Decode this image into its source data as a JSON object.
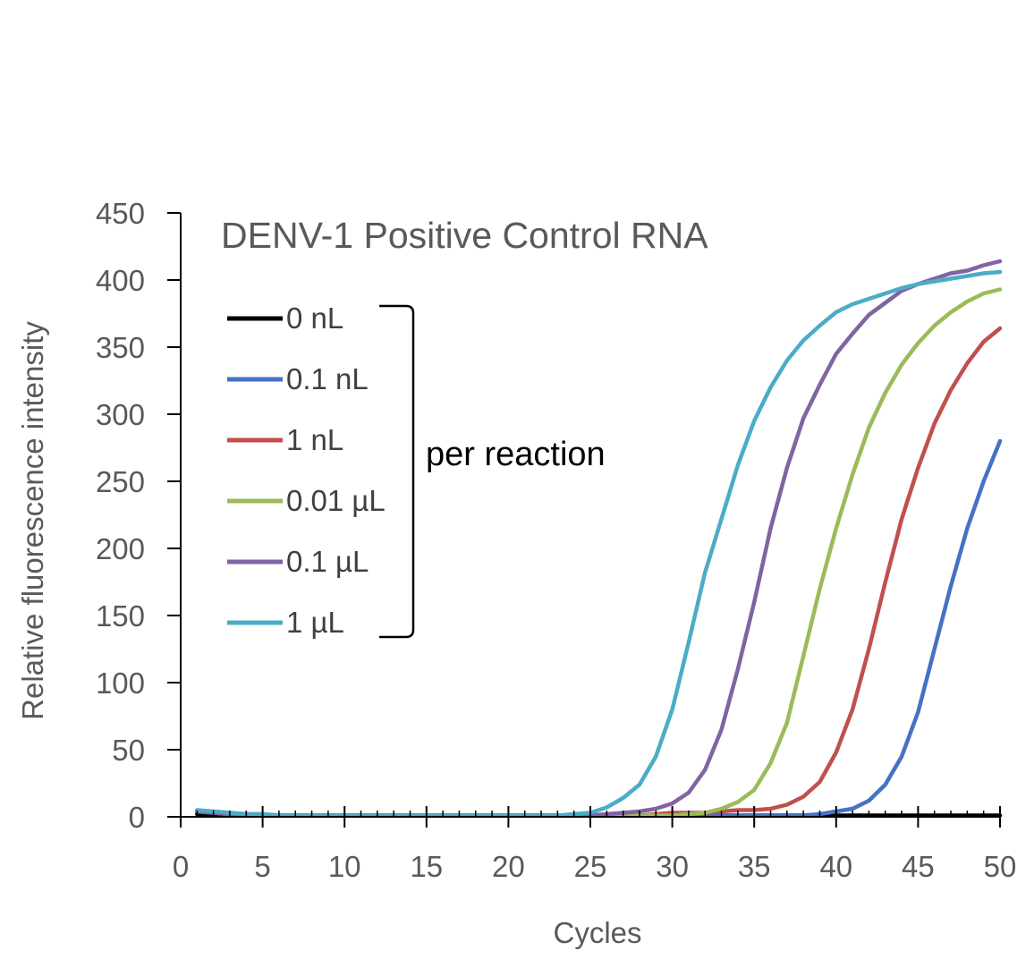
{
  "chart_data": {
    "type": "line",
    "title": "DENV-1 Positive Control RNA",
    "xlabel": "Cycles",
    "ylabel": "Relative fluorescence intensity",
    "xlim": [
      0,
      50
    ],
    "ylim": [
      0,
      450
    ],
    "x_ticks": [
      0,
      5,
      10,
      15,
      20,
      25,
      30,
      35,
      40,
      45,
      50
    ],
    "y_ticks": [
      0,
      50,
      100,
      150,
      200,
      250,
      300,
      350,
      400,
      450
    ],
    "grid": false,
    "legend_position": "top-left",
    "legend_group_label": "per reaction",
    "x": [
      1,
      2,
      3,
      4,
      5,
      6,
      7,
      8,
      9,
      10,
      11,
      12,
      13,
      14,
      15,
      16,
      17,
      18,
      19,
      20,
      21,
      22,
      23,
      24,
      25,
      26,
      27,
      28,
      29,
      30,
      31,
      32,
      33,
      34,
      35,
      36,
      37,
      38,
      39,
      40,
      41,
      42,
      43,
      44,
      45,
      46,
      47,
      48,
      49,
      50
    ],
    "series": [
      {
        "name": "0 nL",
        "color": "#000000",
        "values": [
          2,
          2,
          1,
          1,
          1,
          1,
          1,
          1,
          1,
          1,
          1,
          1,
          1,
          1,
          1,
          1,
          1,
          1,
          1,
          1,
          1,
          1,
          1,
          1,
          1,
          1,
          1,
          1,
          1,
          1,
          1,
          1,
          1,
          1,
          1,
          1,
          1,
          1,
          1,
          1,
          1,
          1,
          1,
          1,
          1,
          1,
          1,
          1,
          1,
          1
        ]
      },
      {
        "name": "0.1 nL",
        "color": "#4472C4",
        "values": [
          4,
          4,
          3,
          2,
          2,
          1,
          1,
          1,
          1,
          1,
          1,
          1,
          1,
          1,
          1,
          1,
          1,
          1,
          1,
          1,
          1,
          1,
          1,
          1,
          1,
          1,
          1,
          1,
          1,
          1,
          1,
          1,
          1,
          1,
          1,
          1,
          1,
          1,
          2,
          4,
          6,
          12,
          24,
          45,
          78,
          125,
          172,
          215,
          250,
          280
        ]
      },
      {
        "name": "1 nL",
        "color": "#C0504D",
        "values": [
          4,
          3,
          2,
          2,
          1,
          1,
          1,
          1,
          1,
          1,
          1,
          1,
          1,
          1,
          1,
          1,
          1,
          1,
          1,
          1,
          1,
          1,
          1,
          1,
          1,
          1,
          1,
          1,
          2,
          3,
          3,
          3,
          4,
          5,
          5,
          6,
          9,
          15,
          26,
          48,
          80,
          125,
          175,
          222,
          260,
          293,
          318,
          338,
          354,
          364
        ]
      },
      {
        "name": "0.01 µL",
        "color": "#9BBB59",
        "values": [
          4,
          3,
          2,
          2,
          1,
          1,
          1,
          1,
          1,
          1,
          1,
          1,
          1,
          1,
          1,
          1,
          1,
          1,
          1,
          1,
          1,
          1,
          1,
          1,
          1,
          1,
          1,
          1,
          1,
          1,
          2,
          3,
          6,
          11,
          20,
          40,
          70,
          120,
          170,
          215,
          255,
          290,
          316,
          337,
          353,
          366,
          376,
          384,
          390,
          393
        ]
      },
      {
        "name": "0.1 µL",
        "color": "#8064A2",
        "values": [
          4,
          3,
          2,
          2,
          1,
          1,
          1,
          1,
          1,
          1,
          1,
          1,
          1,
          1,
          1,
          1,
          1,
          1,
          1,
          1,
          1,
          1,
          1,
          1,
          1,
          2,
          3,
          4,
          6,
          10,
          18,
          35,
          65,
          110,
          160,
          215,
          260,
          297,
          322,
          345,
          360,
          374,
          383,
          392,
          397,
          401,
          405,
          407,
          411,
          414
        ]
      },
      {
        "name": "1 µL",
        "color": "#4BACC6",
        "values": [
          5,
          4,
          3,
          2,
          2,
          1,
          1,
          1,
          1,
          1,
          1,
          1,
          1,
          1,
          1,
          1,
          1,
          1,
          1,
          1,
          1,
          1,
          1,
          2,
          3,
          7,
          14,
          24,
          45,
          80,
          130,
          182,
          222,
          262,
          295,
          320,
          340,
          355,
          366,
          376,
          382,
          386,
          390,
          394,
          397,
          399,
          401,
          403,
          405,
          406
        ]
      }
    ]
  }
}
